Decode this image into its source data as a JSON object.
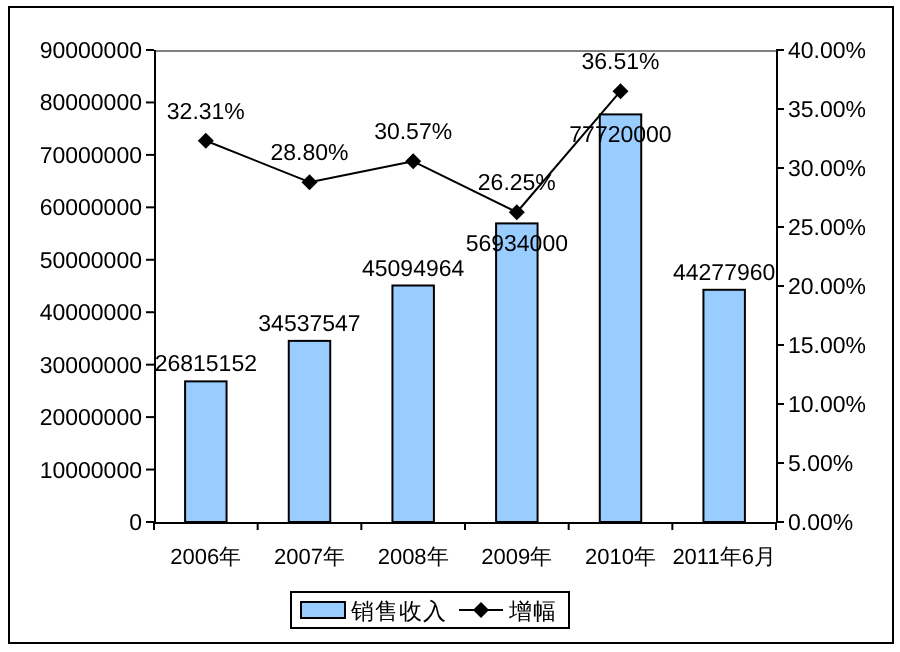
{
  "chart_data": {
    "type": "bar",
    "categories": [
      "2006年",
      "2007年",
      "2008年",
      "2009年",
      "2010年",
      "2011年6月"
    ],
    "series": [
      {
        "name": "销售收入",
        "color": "#99ccff",
        "values": [
          26815152,
          34537547,
          45094964,
          56934000,
          77720000,
          44277960
        ],
        "value_labels": [
          "26815152",
          "34537547",
          "45094964",
          "56934000",
          "77720000",
          "44277960"
        ]
      },
      {
        "name": "增幅",
        "type": "line",
        "axis": "y2",
        "color": "#000000",
        "marker": "diamond",
        "values": [
          32.31,
          28.8,
          30.57,
          26.25,
          36.51,
          null
        ],
        "value_labels": [
          "32.31%",
          "28.80%",
          "30.57%",
          "26.25%",
          "36.51%",
          null
        ]
      }
    ],
    "ylim": [
      0,
      90000000
    ],
    "yticks": [
      0,
      10000000,
      20000000,
      30000000,
      40000000,
      50000000,
      60000000,
      70000000,
      80000000,
      90000000
    ],
    "y2lim": [
      0,
      40
    ],
    "y2ticks": [
      {
        "value": 0,
        "label": "0.00%"
      },
      {
        "value": 5,
        "label": "5.00%"
      },
      {
        "value": 10,
        "label": "10.00%"
      },
      {
        "value": 15,
        "label": "15.00%"
      },
      {
        "value": 20,
        "label": "20.00%"
      },
      {
        "value": 25,
        "label": "25.00%"
      },
      {
        "value": 30,
        "label": "30.00%"
      },
      {
        "value": 35,
        "label": "35.00%"
      },
      {
        "value": 40,
        "label": "40.00%"
      }
    ],
    "grid": false,
    "legend": "bottom"
  }
}
